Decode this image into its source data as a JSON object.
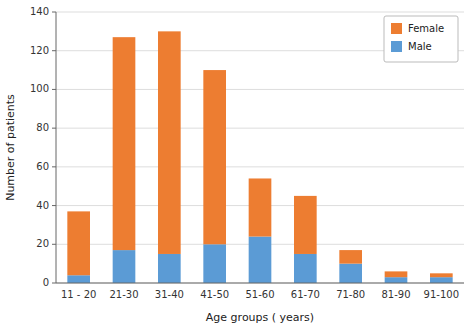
{
  "chart_data": {
    "type": "bar",
    "stacked": true,
    "xlabel": "Age groups ( years)",
    "ylabel": "Number of patients",
    "categories": [
      "11 - 20",
      "21-30",
      "31-40",
      "41-50",
      "51-60",
      "61-70",
      "71-80",
      "81-90",
      "91-100"
    ],
    "series": [
      {
        "name": "Male",
        "color": "#5B9BD5",
        "values": [
          4,
          17,
          15,
          20,
          24,
          15,
          10,
          3,
          3
        ]
      },
      {
        "name": "Female",
        "color": "#ED7D31",
        "values": [
          33,
          110,
          115,
          90,
          30,
          30,
          7,
          3,
          2
        ]
      }
    ],
    "ylim": [
      0,
      140
    ],
    "yticks": [
      0,
      20,
      40,
      60,
      80,
      100,
      120,
      140
    ],
    "grid": true,
    "legend": "upper right"
  }
}
